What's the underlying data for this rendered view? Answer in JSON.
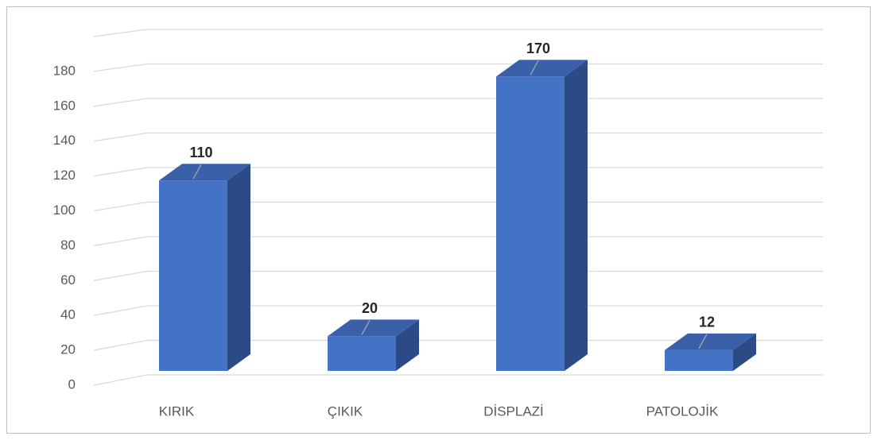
{
  "chart_data": {
    "type": "bar3d",
    "categories": [
      "KIRIK",
      "ÇIKIK",
      "DİSPLAZİ",
      "PATOLOJİK"
    ],
    "values": [
      110,
      20,
      170,
      12
    ],
    "color": "#4472c4",
    "ylim": [
      0,
      200
    ],
    "yticks": [
      0,
      20,
      40,
      60,
      80,
      100,
      120,
      140,
      160,
      180
    ],
    "grid": true
  }
}
